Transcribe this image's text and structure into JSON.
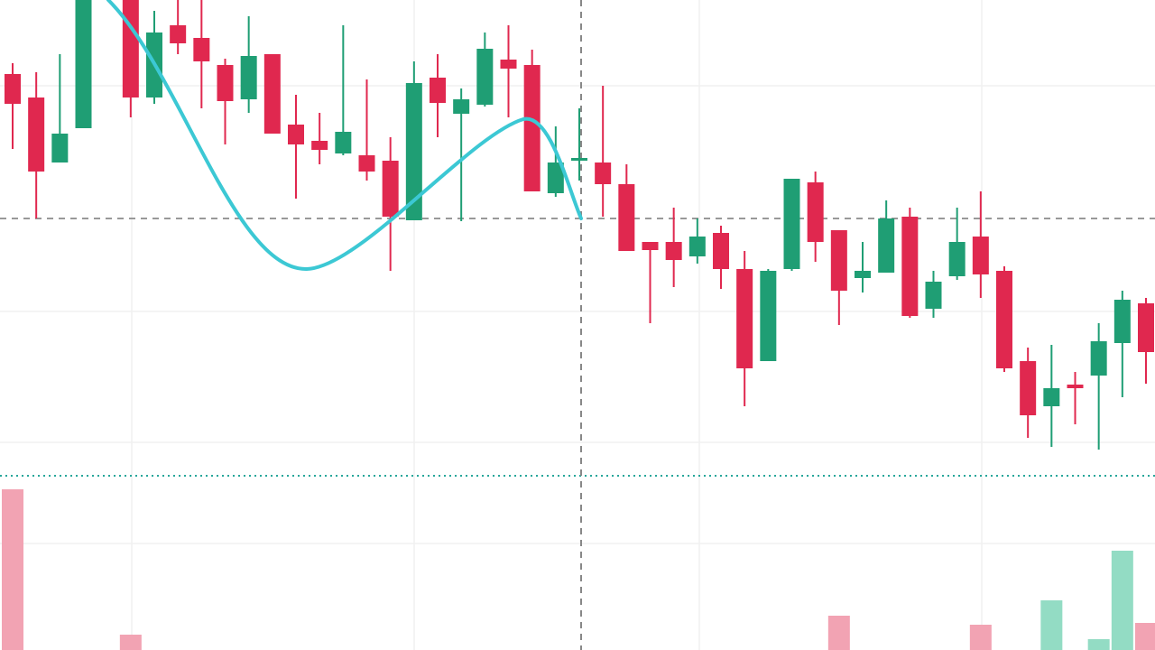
{
  "chart_data": {
    "type": "candlestick",
    "up_color": "#1f9e74",
    "down_color": "#e0284f",
    "volume_up_color": "#93dcc4",
    "volume_down_color": "#f2a3b3",
    "ylim": [
      0,
      520
    ],
    "volume_ylim": [
      0,
      190
    ],
    "price_line": 278,
    "open": [
      438,
      412,
      340,
      378,
      null,
      520,
      412,
      492,
      478,
      448,
      410,
      460,
      382,
      364,
      350,
      348,
      342,
      276,
      434,
      394,
      404,
      454,
      448,
      306,
      342,
      340,
      316,
      252,
      252,
      236,
      262,
      222,
      120,
      222,
      318,
      265,
      212,
      218,
      280,
      178,
      214,
      258,
      220,
      120,
      70,
      94,
      104,
      140,
      184
    ],
    "high": [
      450,
      440,
      460,
      520,
      null,
      520,
      508,
      520,
      520,
      455,
      502,
      460,
      415,
      395,
      492,
      432,
      368,
      452,
      460,
      422,
      484,
      492,
      465,
      380,
      400,
      425,
      338,
      252,
      290,
      278,
      270,
      242,
      222,
      322,
      330,
      265,
      252,
      298,
      290,
      220,
      290,
      308,
      225,
      135,
      138,
      108,
      162,
      198,
      190
    ],
    "low": [
      355,
      278,
      340,
      378,
      null,
      390,
      405,
      460,
      400,
      360,
      395,
      372,
      300,
      338,
      348,
      320,
      220,
      276,
      368,
      275,
      402,
      390,
      308,
      302,
      320,
      280,
      242,
      162,
      202,
      228,
      200,
      70,
      120,
      220,
      230,
      160,
      196,
      218,
      168,
      168,
      210,
      190,
      108,
      35,
      25,
      50,
      22,
      80,
      95
    ],
    "close": [
      405,
      330,
      372,
      520,
      null,
      412,
      484,
      472,
      452,
      408,
      458,
      372,
      360,
      354,
      374,
      330,
      280,
      428,
      406,
      410,
      466,
      444,
      308,
      340,
      345,
      316,
      242,
      243,
      232,
      258,
      222,
      112,
      220,
      322,
      252,
      198,
      220,
      278,
      170,
      208,
      252,
      216,
      112,
      60,
      90,
      90,
      142,
      188,
      130
    ],
    "volume": [
      178,
      null,
      null,
      null,
      null,
      17,
      null,
      null,
      null,
      null,
      null,
      null,
      null,
      null,
      null,
      null,
      null,
      null,
      null,
      null,
      null,
      null,
      null,
      null,
      null,
      null,
      null,
      null,
      null,
      null,
      null,
      null,
      null,
      null,
      null,
      38,
      null,
      null,
      null,
      null,
      null,
      28,
      null,
      null,
      55,
      null,
      12,
      110,
      30
    ]
  }
}
